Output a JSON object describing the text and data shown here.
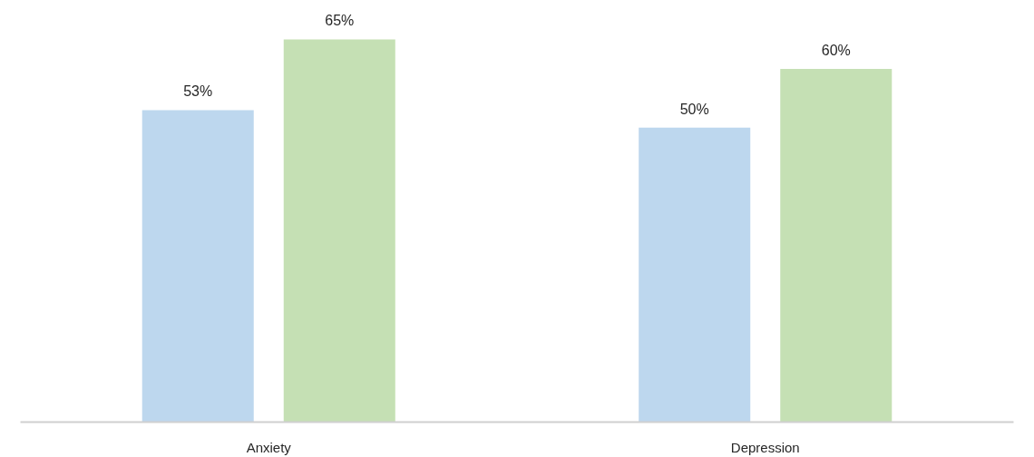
{
  "chart_data": {
    "type": "bar",
    "categories": [
      "Anxiety",
      "Depression"
    ],
    "series": [
      {
        "color": "#bdd7ee",
        "values": [
          53,
          50
        ],
        "value_labels": [
          "53%",
          "50%"
        ]
      },
      {
        "color": "#c5e0b4",
        "values": [
          65,
          60
        ],
        "value_labels": [
          "65%",
          "60%"
        ]
      }
    ],
    "tick_labels": "x",
    "grid": false
  }
}
